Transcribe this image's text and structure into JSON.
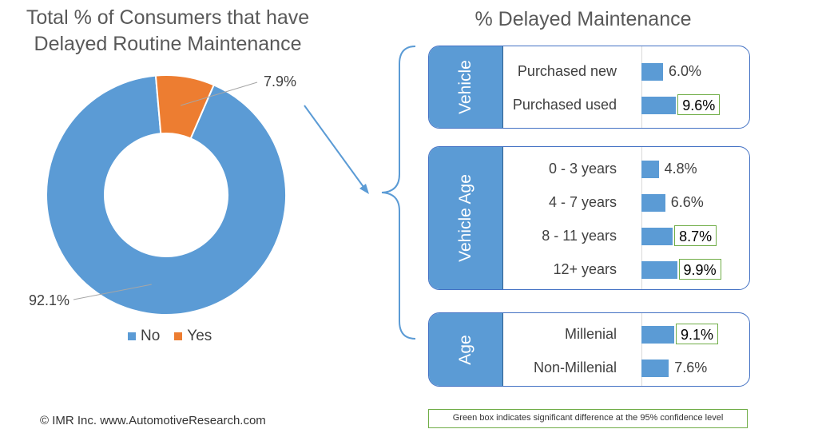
{
  "left_title": "Total % of Consumers that have Delayed Routine Maintenance",
  "right_title": "% Delayed Maintenance",
  "footer": "© IMR Inc. www.AutomotiveResearch.com",
  "note": "Green box indicates significant difference at the 95% confidence level",
  "colors": {
    "blue": "#5b9bd5",
    "orange": "#ed7d31",
    "green_box": "#70ad47"
  },
  "chart_data": [
    {
      "type": "pie",
      "title": "Total % of Consumers that have Delayed Routine Maintenance",
      "donut": true,
      "legend_position": "bottom",
      "slices": [
        {
          "name": "No",
          "value": 92.1,
          "label": "92.1%",
          "color": "#5b9bd5"
        },
        {
          "name": "Yes",
          "value": 7.9,
          "label": "7.9%",
          "color": "#ed7d31"
        }
      ]
    },
    {
      "type": "bar",
      "orientation": "horizontal",
      "title": "% Delayed Maintenance",
      "xlim": [
        0,
        10
      ],
      "groups": [
        {
          "name": "Vehicle",
          "categories": [
            "Purchased new",
            "Purchased used"
          ],
          "values": [
            6.0,
            9.6
          ],
          "labels": [
            "6.0%",
            "9.6%"
          ],
          "significant": [
            false,
            true
          ]
        },
        {
          "name": "Vehicle Age",
          "categories": [
            "0 - 3 years",
            "4 - 7 years",
            "8 - 11 years",
            "12+ years"
          ],
          "values": [
            4.8,
            6.6,
            8.7,
            9.9
          ],
          "labels": [
            "4.8%",
            "6.6%",
            "8.7%",
            "9.9%"
          ],
          "significant": [
            false,
            false,
            true,
            true
          ]
        },
        {
          "name": "Age",
          "categories": [
            "Millenial",
            "Non-Millenial"
          ],
          "values": [
            9.1,
            7.6
          ],
          "labels": [
            "9.1%",
            "7.6%"
          ],
          "significant": [
            true,
            false
          ]
        }
      ]
    }
  ]
}
